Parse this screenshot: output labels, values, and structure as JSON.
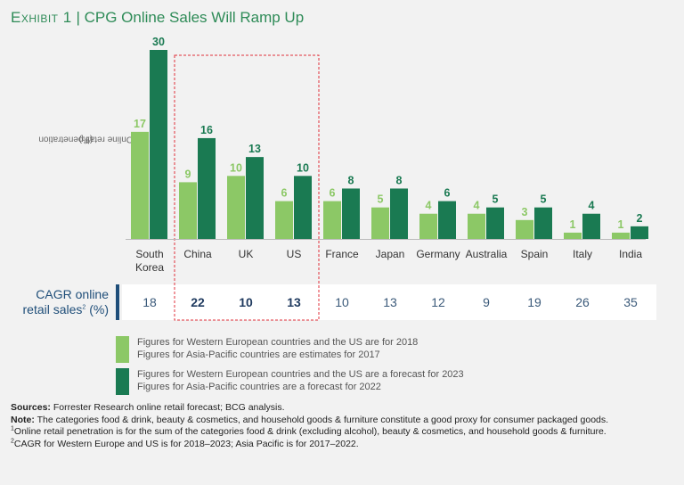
{
  "title": {
    "exhibit": "Exhibit 1",
    "separator": "|",
    "text": "CPG Online Sales Will Ramp Up"
  },
  "chart_data": {
    "type": "bar",
    "categories": [
      "South Korea",
      "China",
      "UK",
      "US",
      "France",
      "Japan",
      "Germany",
      "Australia",
      "Spain",
      "Italy",
      "India"
    ],
    "category_lines": [
      [
        "South",
        "Korea"
      ],
      [
        "China"
      ],
      [
        "UK"
      ],
      [
        "US"
      ],
      [
        "France"
      ],
      [
        "Japan"
      ],
      [
        "Germany"
      ],
      [
        "Australia"
      ],
      [
        "Spain"
      ],
      [
        "Italy"
      ],
      [
        "India"
      ]
    ],
    "series": [
      {
        "values": [
          17,
          9,
          10,
          6,
          6,
          5,
          4,
          4,
          3,
          1,
          1
        ],
        "color": "#8cc866"
      },
      {
        "values": [
          30,
          16,
          13,
          10,
          8,
          8,
          6,
          5,
          5,
          4,
          2
        ],
        "color": "#1a7a52"
      }
    ],
    "ylabel": "Online retail penetration",
    "ylabel_sup": "1",
    "ylabel_unit": "(%)",
    "ylim": [
      0,
      30
    ],
    "highlight": [
      "China",
      "UK",
      "US"
    ],
    "highlight_color": "#e0303b",
    "cagr": {
      "label_line1": "CAGR online",
      "label_line2": "retail sales",
      "label_sup": "2",
      "label_unit": "(%)",
      "values": [
        18,
        22,
        10,
        13,
        10,
        13,
        12,
        9,
        19,
        26,
        35
      ],
      "bold": [
        false,
        true,
        true,
        true,
        false,
        false,
        false,
        false,
        false,
        false,
        false
      ]
    }
  },
  "legend": {
    "light": {
      "line1": "Figures for Western European countries and the US are for 2018",
      "line2": "Figures for Asia-Pacific countries are estimates for 2017"
    },
    "dark": {
      "line1": "Figures for Western European countries and the US are a forecast for 2023",
      "line2": "Figures for Asia-Pacific countries are a forecast for 2022"
    }
  },
  "notes": {
    "sources_label": "Sources:",
    "sources_text": " Forrester Research online retail forecast; BCG analysis.",
    "note_label": "Note:",
    "note_text": " The categories food & drink, beauty & cosmetics, and household goods & furniture constitute a good proxy for consumer packaged goods.",
    "fn1_sup": "1",
    "fn1_text": "Online retail penetration is for the sum of the categories food & drink (excluding alcohol), beauty & cosmetics, and household goods & furniture.",
    "fn2_sup": "2",
    "fn2_text": "CAGR for Western Europe and US is for 2018–2023; Asia Pacific is for 2017–2022."
  }
}
